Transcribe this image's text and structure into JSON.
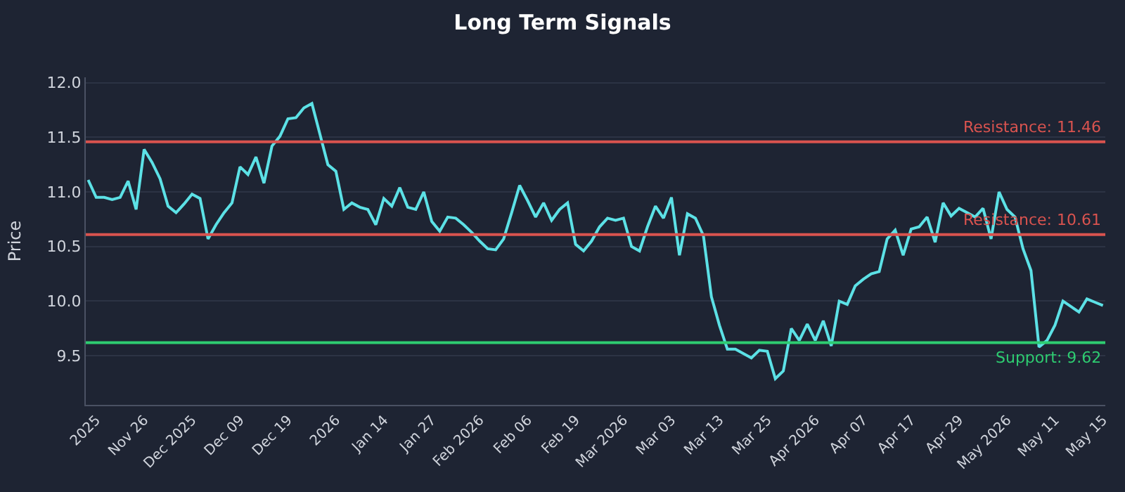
{
  "chart_data": {
    "type": "line",
    "title": "Long Term Signals",
    "ylabel": "Price",
    "categories": [
      null,
      "2025",
      null,
      null,
      null,
      null,
      null,
      "Nov 26",
      null,
      null,
      null,
      null,
      null,
      "Dec 2025",
      null,
      null,
      null,
      null,
      null,
      "Dec 09",
      null,
      null,
      null,
      null,
      null,
      "Dec 19",
      null,
      null,
      null,
      null,
      null,
      "2026",
      null,
      null,
      null,
      null,
      null,
      "Jan 14",
      null,
      null,
      null,
      null,
      null,
      "Jan 27",
      null,
      null,
      null,
      null,
      null,
      "Feb 2026",
      null,
      null,
      null,
      null,
      null,
      "Feb 06",
      null,
      null,
      null,
      null,
      null,
      "Feb 19",
      null,
      null,
      null,
      null,
      null,
      "Mar 2026",
      null,
      null,
      null,
      null,
      null,
      "Mar 03",
      null,
      null,
      null,
      null,
      null,
      "Mar 13",
      null,
      null,
      null,
      null,
      null,
      "Mar 25",
      null,
      null,
      null,
      null,
      null,
      "Apr 2026",
      null,
      null,
      null,
      null,
      null,
      "Apr 07",
      null,
      null,
      null,
      null,
      null,
      "Apr 17",
      null,
      null,
      null,
      null,
      null,
      "Apr 29",
      null,
      null,
      null,
      null,
      null,
      "May 2026",
      null,
      null,
      null,
      null,
      null,
      "May 11",
      null,
      null,
      null,
      null,
      null,
      "May 15"
    ],
    "series": [
      {
        "color": "#5ce1e6",
        "values": [
          11.11,
          10.95,
          10.95,
          10.93,
          10.95,
          11.1,
          10.84,
          11.39,
          11.27,
          11.12,
          10.87,
          10.81,
          10.89,
          10.98,
          10.94,
          10.57,
          10.7,
          10.81,
          10.9,
          11.23,
          11.16,
          11.32,
          11.08,
          11.42,
          11.51,
          11.67,
          11.68,
          11.77,
          11.81,
          11.53,
          11.25,
          11.19,
          10.84,
          10.9,
          10.86,
          10.84,
          10.7,
          10.94,
          10.87,
          11.04,
          10.86,
          10.84,
          11.0,
          10.73,
          10.64,
          10.77,
          10.76,
          10.7,
          10.63,
          10.55,
          10.48,
          10.47,
          10.57,
          10.81,
          11.06,
          10.92,
          10.77,
          10.9,
          10.74,
          10.84,
          10.9,
          10.52,
          10.46,
          10.55,
          10.68,
          10.76,
          10.74,
          10.76,
          10.5,
          10.46,
          10.68,
          10.87,
          10.76,
          10.95,
          10.42,
          10.8,
          10.76,
          10.6,
          10.04,
          9.78,
          9.56,
          9.56,
          9.52,
          9.48,
          9.55,
          9.54,
          9.29,
          9.36,
          9.75,
          9.64,
          9.79,
          9.64,
          9.82,
          9.59,
          10.0,
          9.97,
          10.14,
          10.2,
          10.25,
          10.27,
          10.57,
          10.65,
          10.42,
          10.66,
          10.68,
          10.77,
          10.54,
          10.9,
          10.78,
          10.85,
          10.81,
          10.77,
          10.85,
          10.57,
          11.0,
          10.84,
          10.77,
          10.48,
          10.28,
          9.58,
          9.64,
          9.78,
          10.0,
          9.95,
          9.9,
          10.02,
          9.99,
          9.96
        ]
      }
    ],
    "ylim": [
      9.05,
      12.05
    ],
    "yticks": [
      9.5,
      {
        "value": 10,
        "label": "10.0"
      },
      10.5,
      {
        "value": 11,
        "label": "11.0"
      },
      11.5,
      {
        "value": 12,
        "label": "12.0"
      }
    ],
    "ref_lines": [
      {
        "axis": "y",
        "value": 11.46,
        "label": "Resistance: 11.46",
        "color": "#d9534f"
      },
      {
        "axis": "y",
        "value": 10.61,
        "label": "Resistance: 10.61",
        "color": "#d9534f"
      },
      {
        "axis": "y",
        "value": 9.62,
        "label": "Support: 9.62",
        "color": "#2ecc71"
      }
    ],
    "grid": "y",
    "marker": "none",
    "line_style": "solid"
  }
}
